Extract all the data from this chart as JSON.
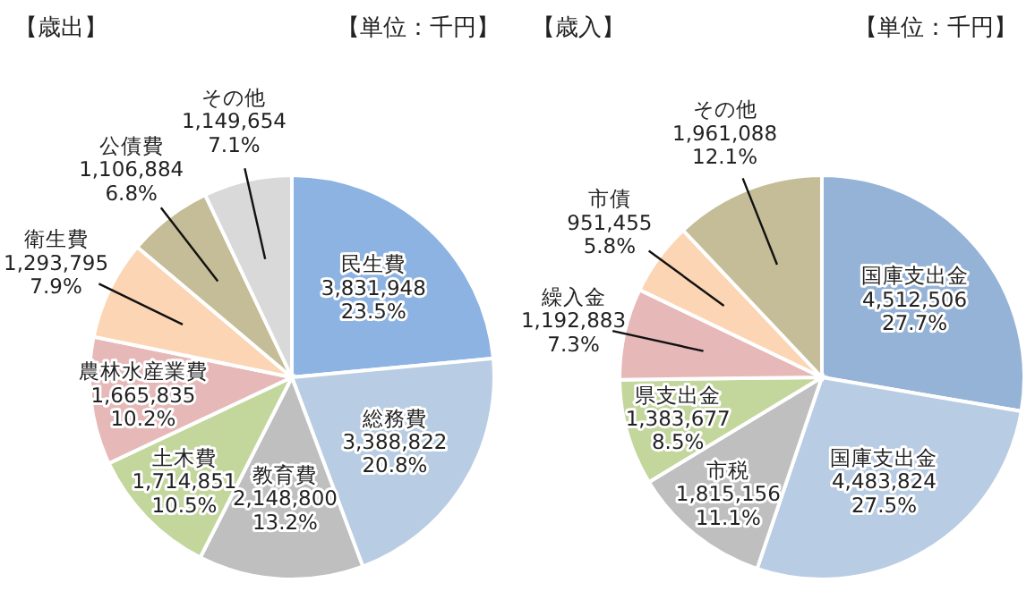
{
  "chart_data": [
    {
      "type": "pie",
      "title": "【歳出】",
      "subtitle": "【単位：千円】",
      "categories": [
        "民生費",
        "総務費",
        "教育費",
        "土木費",
        "農林水産業費",
        "衛生費",
        "公債費",
        "その他"
      ],
      "values": [
        3831948,
        3388822,
        2148800,
        1714851,
        1665835,
        1293795,
        1106884,
        1149654
      ],
      "value_labels": [
        "3,831,948\n23.5%",
        "3,388,822\n20.8%",
        "2,148,800\n13.2%",
        "1,714,851\n10.5%",
        "1,665,835\n10.2%",
        "1,293,795\n7.9%",
        "1,106,884\n6.8%",
        "1,149,654\n7.1%"
      ],
      "colors": [
        "#8db3e2",
        "#b8cce4",
        "#bfbfbf",
        "#c3d69b",
        "#e6b9b8",
        "#fcd5b4",
        "#c4bd97",
        "#d9d9d9"
      ]
    },
    {
      "type": "pie",
      "title": "【歳入】",
      "subtitle": "【単位：千円】",
      "categories": [
        "国庫支出金",
        "国庫支出金",
        "市税",
        "県支出金",
        "繰入金",
        "市債",
        "その他"
      ],
      "values": [
        4512506,
        4483824,
        1815156,
        1383677,
        1192883,
        951455,
        1961088
      ],
      "value_labels": [
        "4,512,506\n27.7%",
        "4,483,824\n27.5%",
        "1,815,156\n11.1%",
        "1,383,677\n8.5%",
        "1,192,883\n7.3%",
        "951,455\n5.8%",
        "1,961,088\n12.1%"
      ],
      "colors": [
        "#95b3d7",
        "#b8cce4",
        "#bfbfbf",
        "#c3d69b",
        "#e6b9b8",
        "#fcd5b4",
        "#c4bd97"
      ]
    }
  ]
}
